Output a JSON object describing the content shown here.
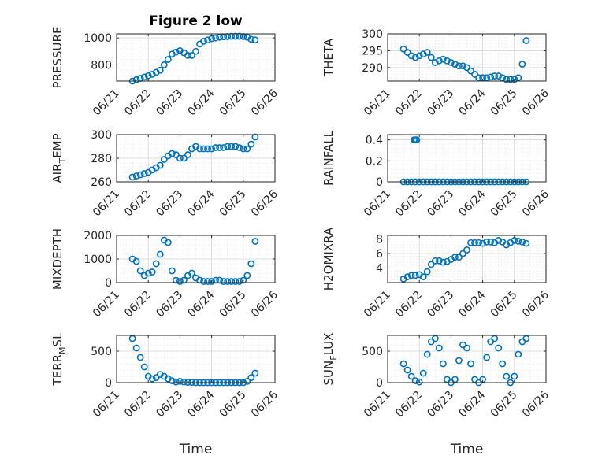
{
  "chart_data": [
    {
      "id": "pressure",
      "type": "scatter",
      "title": "Figure 2 low",
      "ylabel": "PRESSURE",
      "xlabel": "",
      "ylim": [
        680,
        1030
      ],
      "xlim": [
        "06/21",
        "06/26"
      ],
      "xticks": [
        "06/21",
        "06/22",
        "06/23",
        "06/24",
        "06/25",
        "06/26"
      ],
      "yticks": [
        800,
        1000
      ],
      "yticklabels": [
        "800",
        "1000"
      ],
      "grid": true,
      "x": [
        "06/21 12:00",
        "06/21 15:00",
        "06/21 18:00",
        "06/21 21:00",
        "06/22 00:00",
        "06/22 03:00",
        "06/22 06:00",
        "06/22 09:00",
        "06/22 12:00",
        "06/22 15:00",
        "06/22 18:00",
        "06/22 21:00",
        "06/23 00:00",
        "06/23 03:00",
        "06/23 06:00",
        "06/23 09:00",
        "06/23 12:00",
        "06/23 15:00",
        "06/23 18:00",
        "06/23 21:00",
        "06/24 00:00",
        "06/24 03:00",
        "06/24 06:00",
        "06/24 09:00",
        "06/24 12:00",
        "06/24 15:00",
        "06/24 18:00",
        "06/24 21:00",
        "06/25 00:00",
        "06/25 03:00",
        "06/25 06:00",
        "06/25 09:00"
      ],
      "y": [
        680,
        690,
        700,
        710,
        720,
        730,
        745,
        760,
        800,
        840,
        880,
        895,
        905,
        890,
        870,
        870,
        900,
        955,
        975,
        985,
        995,
        1000,
        1005,
        1008,
        1010,
        1012,
        1012,
        1012,
        1010,
        1005,
        990,
        985
      ]
    },
    {
      "id": "theta",
      "type": "scatter",
      "ylabel": "THETA",
      "xlabel": "",
      "ylim": [
        286,
        300
      ],
      "xlim": [
        "06/21",
        "06/26"
      ],
      "xticks": [
        "06/21",
        "06/22",
        "06/23",
        "06/24",
        "06/25",
        "06/26"
      ],
      "yticks": [
        290,
        295,
        300
      ],
      "yticklabels": [
        "290",
        "295",
        "300"
      ],
      "grid": true,
      "x": [
        "06/21 12:00",
        "06/21 15:00",
        "06/21 18:00",
        "06/21 21:00",
        "06/22 00:00",
        "06/22 03:00",
        "06/22 06:00",
        "06/22 09:00",
        "06/22 12:00",
        "06/22 15:00",
        "06/22 18:00",
        "06/22 21:00",
        "06/23 00:00",
        "06/23 03:00",
        "06/23 06:00",
        "06/23 09:00",
        "06/23 12:00",
        "06/23 15:00",
        "06/23 18:00",
        "06/23 21:00",
        "06/24 00:00",
        "06/24 03:00",
        "06/24 06:00",
        "06/24 09:00",
        "06/24 12:00",
        "06/24 15:00",
        "06/24 18:00",
        "06/24 21:00",
        "06/25 00:00",
        "06/25 03:00",
        "06/25 06:00",
        "06/25 09:00"
      ],
      "y": [
        295.5,
        294.5,
        293.5,
        293,
        293.5,
        294,
        294.5,
        293,
        291.5,
        292,
        292.5,
        292,
        291.5,
        291,
        290.5,
        290.5,
        290,
        289,
        288,
        287,
        287,
        287,
        287.2,
        287.5,
        287.5,
        287,
        286.5,
        286.5,
        286.5,
        287,
        291,
        298
      ]
    },
    {
      "id": "air_temp",
      "type": "scatter",
      "ylabel": "AIR_TEMP",
      "ylabel_main": "AIR",
      "ylabel_sub": "T",
      "ylabel_rest": "EMP",
      "xlabel": "",
      "ylim": [
        260,
        300
      ],
      "xlim": [
        "06/21",
        "06/26"
      ],
      "xticks": [
        "06/21",
        "06/22",
        "06/23",
        "06/24",
        "06/25",
        "06/26"
      ],
      "yticks": [
        260,
        280,
        300
      ],
      "yticklabels": [
        "260",
        "280",
        "300"
      ],
      "grid": true,
      "x": [
        "06/21 12:00",
        "06/21 15:00",
        "06/21 18:00",
        "06/21 21:00",
        "06/22 00:00",
        "06/22 03:00",
        "06/22 06:00",
        "06/22 09:00",
        "06/22 12:00",
        "06/22 15:00",
        "06/22 18:00",
        "06/22 21:00",
        "06/23 00:00",
        "06/23 03:00",
        "06/23 06:00",
        "06/23 09:00",
        "06/23 12:00",
        "06/23 15:00",
        "06/23 18:00",
        "06/23 21:00",
        "06/24 00:00",
        "06/24 03:00",
        "06/24 06:00",
        "06/24 09:00",
        "06/24 12:00",
        "06/24 15:00",
        "06/24 18:00",
        "06/24 21:00",
        "06/25 00:00",
        "06/25 03:00",
        "06/25 06:00",
        "06/25 09:00"
      ],
      "y": [
        264,
        265,
        266,
        267,
        268,
        270,
        272,
        274,
        279,
        282,
        284,
        283,
        280,
        280,
        283,
        288,
        290,
        288,
        288,
        288,
        288,
        289,
        289,
        289,
        290,
        290,
        290,
        289,
        288,
        288,
        292,
        298
      ]
    },
    {
      "id": "rainfall",
      "type": "scatter",
      "ylabel": "RAINFALL",
      "xlabel": "",
      "ylim": [
        0,
        0.45
      ],
      "xlim": [
        "06/21",
        "06/26"
      ],
      "xticks": [
        "06/21",
        "06/22",
        "06/23",
        "06/24",
        "06/25",
        "06/26"
      ],
      "yticks": [
        0,
        0.2,
        0.4
      ],
      "yticklabels": [
        "0",
        "0.2",
        "0.4"
      ],
      "grid": true,
      "x": [
        "06/21 12:00",
        "06/21 15:00",
        "06/21 18:00",
        "06/21 21:00",
        "06/22 00:00",
        "06/22 03:00",
        "06/22 06:00",
        "06/22 09:00",
        "06/22 12:00",
        "06/22 15:00",
        "06/22 18:00",
        "06/22 21:00",
        "06/23 00:00",
        "06/23 03:00",
        "06/23 06:00",
        "06/23 09:00",
        "06/23 12:00",
        "06/23 15:00",
        "06/23 18:00",
        "06/23 21:00",
        "06/24 00:00",
        "06/24 03:00",
        "06/24 06:00",
        "06/24 09:00",
        "06/24 12:00",
        "06/24 15:00",
        "06/24 18:00",
        "06/24 21:00",
        "06/25 00:00",
        "06/25 03:00",
        "06/25 06:00",
        "06/25 09:00",
        "06/21 20:00",
        "06/21 21:00",
        "06/21 22:00"
      ],
      "y": [
        0,
        0,
        0,
        0,
        0,
        0,
        0,
        0,
        0,
        0,
        0,
        0,
        0,
        0,
        0,
        0,
        0,
        0,
        0,
        0,
        0,
        0,
        0,
        0,
        0,
        0,
        0,
        0,
        0,
        0,
        0,
        0,
        0.4,
        0.4,
        0.4
      ]
    },
    {
      "id": "mixdepth",
      "type": "scatter",
      "ylabel": "MIXDEPTH",
      "xlabel": "",
      "ylim": [
        0,
        2000
      ],
      "xlim": [
        "06/21",
        "06/26"
      ],
      "xticks": [
        "06/21",
        "06/22",
        "06/23",
        "06/24",
        "06/25",
        "06/26"
      ],
      "yticks": [
        0,
        1000,
        2000
      ],
      "yticklabels": [
        "0",
        "1000",
        "2000"
      ],
      "grid": true,
      "x": [
        "06/21 12:00",
        "06/21 15:00",
        "06/21 18:00",
        "06/21 21:00",
        "06/22 00:00",
        "06/22 03:00",
        "06/22 06:00",
        "06/22 09:00",
        "06/22 12:00",
        "06/22 15:00",
        "06/22 18:00",
        "06/22 21:00",
        "06/23 00:00",
        "06/23 03:00",
        "06/23 06:00",
        "06/23 09:00",
        "06/23 12:00",
        "06/23 15:00",
        "06/23 18:00",
        "06/23 21:00",
        "06/24 00:00",
        "06/24 03:00",
        "06/24 06:00",
        "06/24 09:00",
        "06/24 12:00",
        "06/24 15:00",
        "06/24 18:00",
        "06/24 21:00",
        "06/25 00:00",
        "06/25 03:00",
        "06/25 06:00",
        "06/25 09:00"
      ],
      "y": [
        1000,
        900,
        500,
        300,
        400,
        450,
        800,
        1200,
        1800,
        1700,
        500,
        100,
        50,
        100,
        300,
        400,
        200,
        100,
        50,
        50,
        50,
        100,
        100,
        50,
        50,
        50,
        50,
        50,
        100,
        300,
        800,
        1750
      ]
    },
    {
      "id": "h2omixra",
      "type": "scatter",
      "ylabel": "H2OMIXRA",
      "xlabel": "",
      "ylim": [
        2,
        8.5
      ],
      "xlim": [
        "06/21",
        "06/26"
      ],
      "xticks": [
        "06/21",
        "06/22",
        "06/23",
        "06/24",
        "06/25",
        "06/26"
      ],
      "yticks": [
        4,
        6,
        8
      ],
      "yticklabels": [
        "4",
        "6",
        "8"
      ],
      "grid": true,
      "x": [
        "06/21 12:00",
        "06/21 15:00",
        "06/21 18:00",
        "06/21 21:00",
        "06/22 00:00",
        "06/22 03:00",
        "06/22 06:00",
        "06/22 09:00",
        "06/22 12:00",
        "06/22 15:00",
        "06/22 18:00",
        "06/22 21:00",
        "06/23 00:00",
        "06/23 03:00",
        "06/23 06:00",
        "06/23 09:00",
        "06/23 12:00",
        "06/23 15:00",
        "06/23 18:00",
        "06/23 21:00",
        "06/24 00:00",
        "06/24 03:00",
        "06/24 06:00",
        "06/24 09:00",
        "06/24 12:00",
        "06/24 15:00",
        "06/24 18:00",
        "06/24 21:00",
        "06/25 00:00",
        "06/25 03:00",
        "06/25 06:00",
        "06/25 09:00"
      ],
      "y": [
        2.5,
        2.8,
        3,
        3,
        3.1,
        2.8,
        3.5,
        4.5,
        5,
        5,
        4.8,
        4.9,
        5.2,
        5.5,
        5.5,
        6,
        6.5,
        7.5,
        7.5,
        7.5,
        7.4,
        7.6,
        7.6,
        7.5,
        7.8,
        7.6,
        7.2,
        7.5,
        7.8,
        7.7,
        7.6,
        7.4
      ]
    },
    {
      "id": "terr_msl",
      "type": "scatter",
      "ylabel": "TERR_MSL",
      "ylabel_main": "TERR",
      "ylabel_sub": "M",
      "ylabel_rest": "SL",
      "xlabel": "Time",
      "ylim": [
        0,
        750
      ],
      "xlim": [
        "06/21",
        "06/26"
      ],
      "xticks": [
        "06/21",
        "06/22",
        "06/23",
        "06/24",
        "06/25",
        "06/26"
      ],
      "yticks": [
        0,
        500
      ],
      "yticklabels": [
        "0",
        "500"
      ],
      "grid": true,
      "x": [
        "06/21 12:00",
        "06/21 15:00",
        "06/21 18:00",
        "06/21 21:00",
        "06/22 00:00",
        "06/22 03:00",
        "06/22 06:00",
        "06/22 09:00",
        "06/22 12:00",
        "06/22 15:00",
        "06/22 18:00",
        "06/22 21:00",
        "06/23 00:00",
        "06/23 03:00",
        "06/23 06:00",
        "06/23 09:00",
        "06/23 12:00",
        "06/23 15:00",
        "06/23 18:00",
        "06/23 21:00",
        "06/24 00:00",
        "06/24 03:00",
        "06/24 06:00",
        "06/24 09:00",
        "06/24 12:00",
        "06/24 15:00",
        "06/24 18:00",
        "06/24 21:00",
        "06/25 00:00",
        "06/25 03:00",
        "06/25 06:00",
        "06/25 09:00"
      ],
      "y": [
        700,
        550,
        400,
        250,
        100,
        60,
        80,
        130,
        100,
        60,
        30,
        10,
        20,
        10,
        5,
        5,
        0,
        0,
        0,
        0,
        0,
        0,
        0,
        0,
        0,
        0,
        0,
        0,
        0,
        20,
        80,
        150
      ]
    },
    {
      "id": "sun_flux",
      "type": "scatter",
      "ylabel": "SUN_FLUX",
      "ylabel_main": "SUN",
      "ylabel_sub": "F",
      "ylabel_rest": "LUX",
      "xlabel": "Time",
      "ylim": [
        0,
        750
      ],
      "xlim": [
        "06/21",
        "06/26"
      ],
      "xticks": [
        "06/21",
        "06/22",
        "06/23",
        "06/24",
        "06/25",
        "06/26"
      ],
      "yticks": [
        0,
        500
      ],
      "yticklabels": [
        "0",
        "500"
      ],
      "grid": true,
      "x": [
        "06/21 12:00",
        "06/21 15:00",
        "06/21 18:00",
        "06/21 21:00",
        "06/22 00:00",
        "06/22 03:00",
        "06/22 06:00",
        "06/22 09:00",
        "06/22 12:00",
        "06/22 15:00",
        "06/22 18:00",
        "06/22 21:00",
        "06/23 00:00",
        "06/23 03:00",
        "06/23 06:00",
        "06/23 09:00",
        "06/23 12:00",
        "06/23 15:00",
        "06/23 18:00",
        "06/23 21:00",
        "06/24 00:00",
        "06/24 03:00",
        "06/24 06:00",
        "06/24 09:00",
        "06/24 12:00",
        "06/24 15:00",
        "06/24 18:00",
        "06/24 21:00",
        "06/25 00:00",
        "06/25 03:00",
        "06/25 06:00",
        "06/25 09:00"
      ],
      "y": [
        300,
        200,
        100,
        30,
        10,
        150,
        450,
        650,
        700,
        550,
        300,
        50,
        0,
        50,
        350,
        600,
        550,
        300,
        50,
        0,
        50,
        400,
        650,
        700,
        550,
        300,
        100,
        0,
        100,
        450,
        650,
        700
      ]
    }
  ]
}
